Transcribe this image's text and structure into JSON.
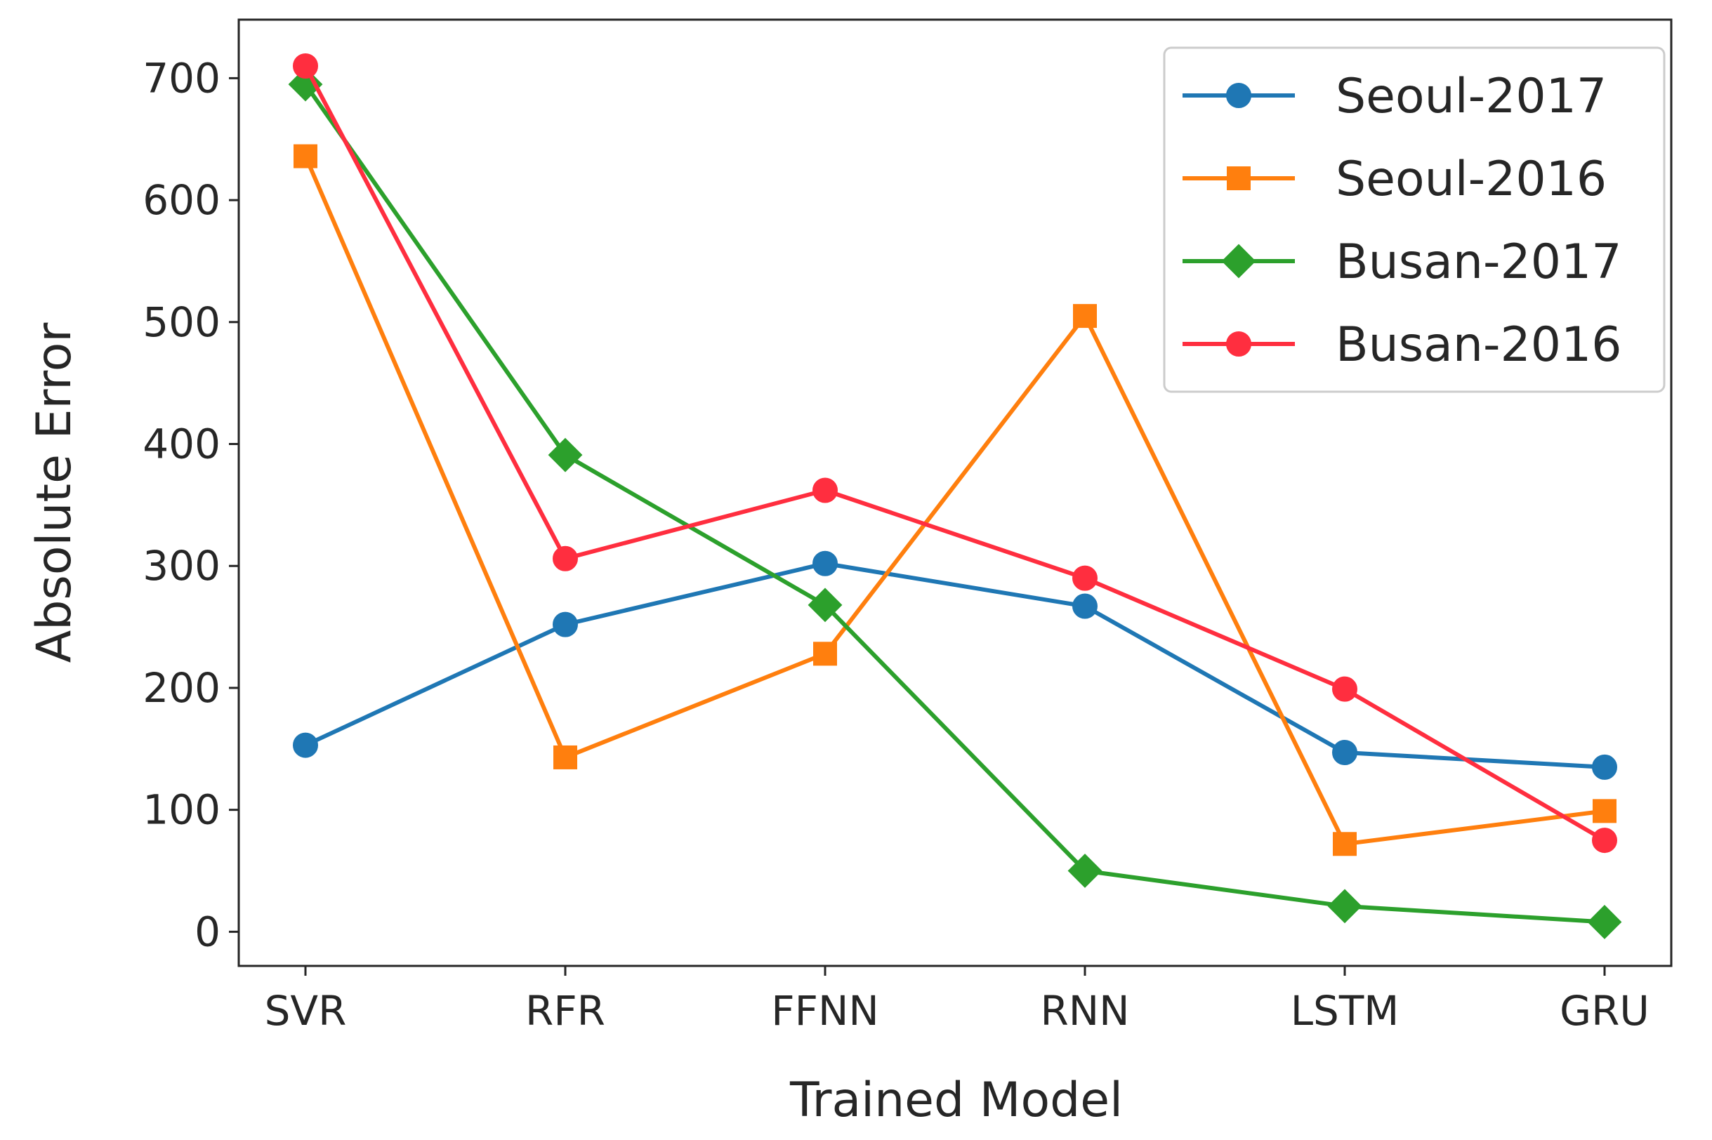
{
  "chart_data": {
    "type": "line",
    "title": "",
    "xlabel": "Trained Model",
    "ylabel": "Absolute Error",
    "categories": [
      "SVR",
      "RFR",
      "FFNN",
      "RNN",
      "LSTM",
      "GRU"
    ],
    "ylim": [
      -28,
      748
    ],
    "yticks": [
      0,
      100,
      200,
      300,
      400,
      500,
      600,
      700
    ],
    "ytick_labels": [
      "0",
      "100",
      "200",
      "300",
      "400",
      "500",
      "600",
      "700"
    ],
    "grid": false,
    "legend_position": "top-right",
    "series": [
      {
        "name": "Seoul-2017",
        "color": "#1f77b4",
        "marker": "circle",
        "values": [
          153,
          252,
          302,
          267,
          147,
          135
        ]
      },
      {
        "name": "Seoul-2016",
        "color": "#ff7f0e",
        "marker": "square",
        "values": [
          636,
          143,
          228,
          505,
          72,
          99
        ]
      },
      {
        "name": "Busan-2017",
        "color": "#2ca02c",
        "marker": "diamond",
        "values": [
          695,
          391,
          268,
          50,
          21,
          8
        ]
      },
      {
        "name": "Busan-2016",
        "color": "#ff2e3f",
        "marker": "circle",
        "values": [
          710,
          306,
          362,
          290,
          199,
          75
        ]
      }
    ]
  }
}
